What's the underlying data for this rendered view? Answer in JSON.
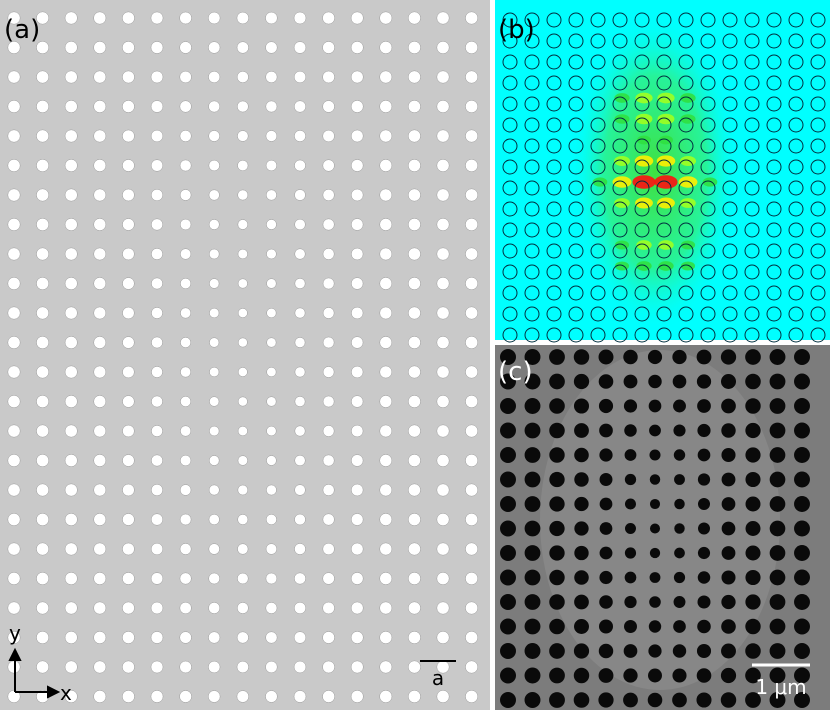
{
  "panels": [
    {
      "label": "(a)"
    },
    {
      "label": "(b)"
    },
    {
      "label": "(c)"
    }
  ],
  "axes": {
    "y": "y",
    "x": "x"
  },
  "scale_bars": {
    "a": "a",
    "c": "1 μm"
  }
}
